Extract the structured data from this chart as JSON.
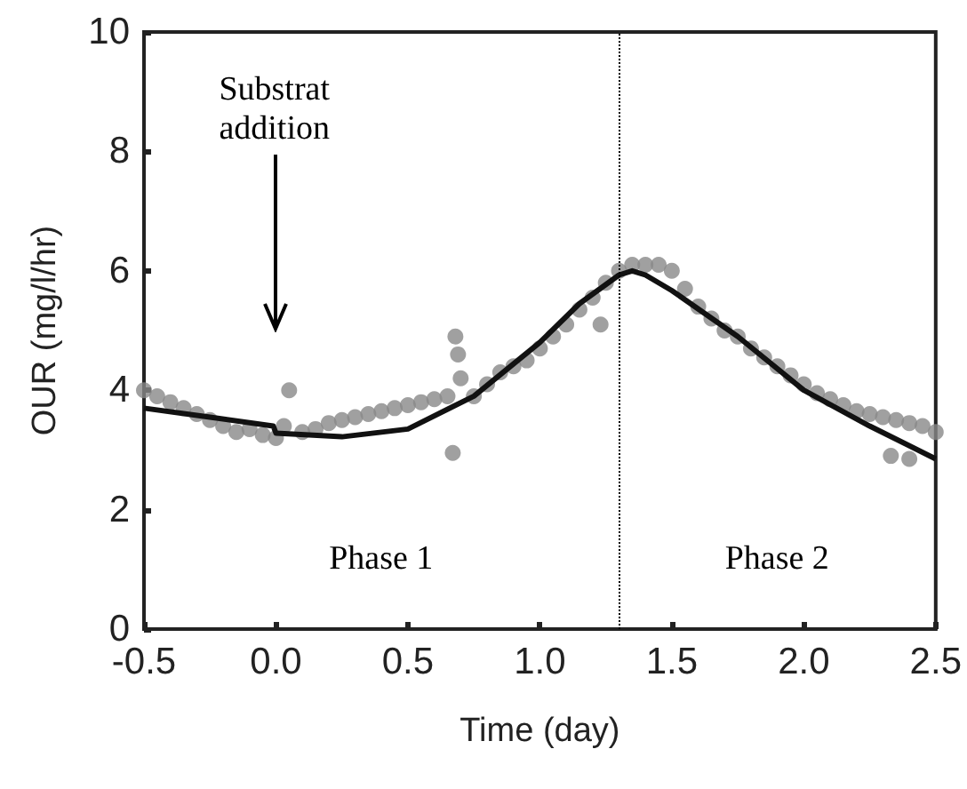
{
  "chart_data": {
    "type": "scatter",
    "xlabel": "Time (day)",
    "ylabel": "OUR (mg/l/hr)",
    "xlim": [
      -0.5,
      2.5
    ],
    "xticks": [
      -0.5,
      {
        "value": 0,
        "label": "0.0"
      },
      0.5,
      {
        "value": 1,
        "label": "1.0"
      },
      1.5,
      {
        "value": 2,
        "label": "2.0"
      },
      2.5
    ],
    "ylim": [
      0,
      10
    ],
    "yticks": [
      0,
      2,
      4,
      6,
      8,
      10
    ],
    "series": [
      {
        "color": "#888888",
        "marker": "circle",
        "x": [
          -0.5,
          -0.45,
          -0.4,
          -0.35,
          -0.3,
          -0.25,
          -0.2,
          -0.15,
          -0.1,
          -0.05,
          0,
          0.03,
          0.05,
          0.1,
          0.15,
          0.2,
          0.25,
          0.3,
          0.35,
          0.4,
          0.45,
          0.5,
          0.55,
          0.6,
          0.65,
          0.67,
          0.68,
          0.69,
          0.7,
          0.75,
          0.8,
          0.85,
          0.9,
          0.95,
          1,
          1.05,
          1.1,
          1.15,
          1.2,
          1.23,
          1.25,
          1.3,
          1.35,
          1.4,
          1.45,
          1.5,
          1.55,
          1.6,
          1.65,
          1.7,
          1.75,
          1.8,
          1.85,
          1.9,
          1.95,
          2,
          2.05,
          2.1,
          2.15,
          2.2,
          2.25,
          2.3,
          2.33,
          2.35,
          2.4,
          2.4,
          2.45,
          2.5
        ],
        "values": [
          4,
          3.9,
          3.8,
          3.7,
          3.6,
          3.5,
          3.4,
          3.3,
          3.35,
          3.25,
          3.2,
          3.4,
          4,
          3.3,
          3.35,
          3.45,
          3.5,
          3.55,
          3.6,
          3.65,
          3.7,
          3.75,
          3.8,
          3.85,
          3.9,
          2.95,
          4.9,
          4.6,
          4.2,
          3.9,
          4.1,
          4.3,
          4.4,
          4.5,
          4.7,
          4.9,
          5.1,
          5.35,
          5.55,
          5.1,
          5.8,
          6,
          6.1,
          6.1,
          6.1,
          6,
          5.7,
          5.4,
          5.2,
          5,
          4.9,
          4.7,
          4.55,
          4.4,
          4.25,
          4.1,
          3.95,
          3.85,
          3.75,
          3.65,
          3.6,
          3.55,
          2.9,
          3.5,
          3.45,
          2.85,
          3.4,
          3.3
        ]
      },
      {
        "type": "line",
        "color": "#111111",
        "marker": "none",
        "line_style": "solid",
        "x": [
          -0.5,
          -0.25,
          -0.01,
          0,
          0.25,
          0.5,
          0.75,
          1,
          1.15,
          1.3,
          1.35,
          1.4,
          1.5,
          1.75,
          2,
          2.25,
          2.5
        ],
        "values": [
          3.7,
          3.55,
          3.4,
          3.28,
          3.22,
          3.35,
          3.9,
          4.8,
          5.45,
          5.93,
          6,
          5.93,
          5.67,
          4.9,
          4,
          3.4,
          2.85
        ]
      }
    ],
    "ref_lines": [
      {
        "axis": "x",
        "value": 1.3,
        "color": "#000000",
        "line_style": "dotted"
      }
    ],
    "annotations": [
      {
        "text": "Substrat addition",
        "x": 0
      },
      "Phase 1",
      "Phase 2"
    ]
  }
}
